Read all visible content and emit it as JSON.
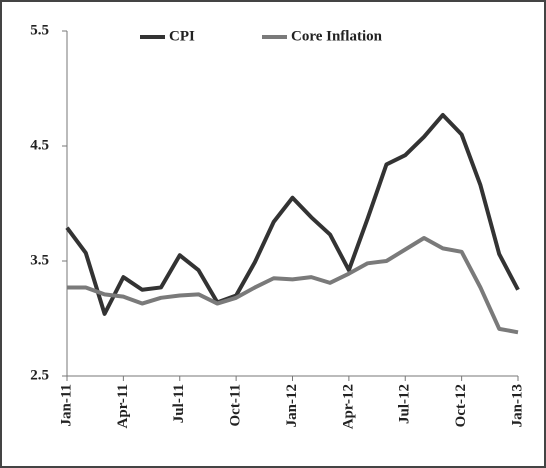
{
  "chart_data": {
    "type": "line",
    "categories": [
      "Jan-11",
      null,
      null,
      "Apr-11",
      null,
      null,
      "Jul-11",
      null,
      null,
      "Oct-11",
      null,
      null,
      "Jan-12",
      null,
      null,
      "Apr-12",
      null,
      null,
      "Jul-12",
      null,
      null,
      "Oct-12",
      null,
      null,
      "Jan-13"
    ],
    "series": [
      {
        "name": "CPI",
        "color": "#333333",
        "values": [
          3.79,
          3.57,
          3.04,
          3.36,
          3.25,
          3.27,
          3.55,
          3.42,
          3.14,
          3.2,
          3.49,
          3.84,
          4.05,
          3.88,
          3.73,
          3.42,
          3.87,
          4.34,
          4.42,
          4.58,
          4.77,
          4.6,
          4.16,
          3.56,
          3.25
        ]
      },
      {
        "name": "Core Inflation",
        "color": "#7a7a7a",
        "values": [
          3.27,
          3.27,
          3.21,
          3.19,
          3.13,
          3.18,
          3.2,
          3.21,
          3.13,
          3.18,
          3.27,
          3.35,
          3.34,
          3.36,
          3.31,
          3.39,
          3.48,
          3.5,
          3.6,
          3.7,
          3.61,
          3.58,
          3.27,
          2.91,
          2.88
        ]
      }
    ],
    "ylim": [
      2.5,
      5.5
    ],
    "yticks": [
      2.5,
      3.5,
      4.5,
      5.5
    ],
    "grid": false,
    "legend": "top"
  }
}
